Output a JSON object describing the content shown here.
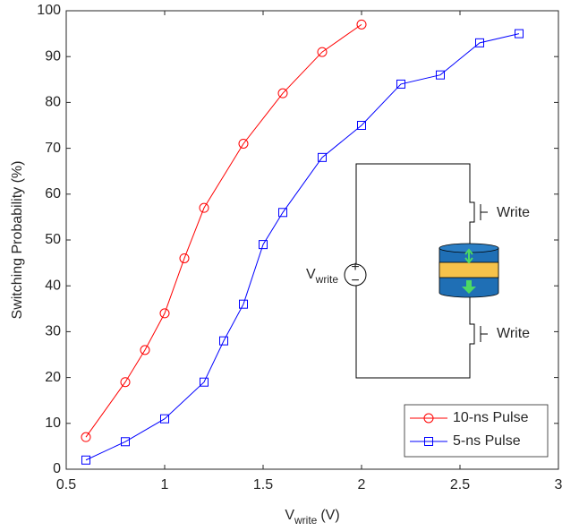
{
  "chart_data": {
    "type": "line",
    "xlabel": "V",
    "xlabel_sub": "write",
    "xlabel_unit": "(V)",
    "ylabel": "Switching Probability (%)",
    "xlim": [
      0.5,
      3
    ],
    "xticks": [
      0.5,
      1,
      1.5,
      2,
      2.5,
      3
    ],
    "ylim": [
      0,
      100
    ],
    "yticks": [
      0,
      10,
      20,
      30,
      40,
      50,
      60,
      70,
      80,
      90,
      100
    ],
    "grid": false,
    "legend": "lower right",
    "series": [
      {
        "name": "10-ns Pulse",
        "color": "#ff0000",
        "marker": "circle",
        "x": [
          0.6,
          0.8,
          0.9,
          1.0,
          1.1,
          1.2,
          1.4,
          1.6,
          1.8,
          2.0
        ],
        "values": [
          7,
          19,
          26,
          34,
          46,
          57,
          71,
          82,
          91,
          97
        ]
      },
      {
        "name": "5-ns Pulse",
        "color": "#0000ff",
        "marker": "square",
        "x": [
          0.6,
          0.8,
          1.0,
          1.2,
          1.3,
          1.4,
          1.5,
          1.6,
          1.8,
          2.0,
          2.2,
          2.4,
          2.6,
          2.8
        ],
        "values": [
          2,
          6,
          11,
          19,
          28,
          36,
          49,
          56,
          68,
          75,
          84,
          86,
          93,
          95
        ]
      }
    ],
    "inset": {
      "source_label": "V",
      "source_label_sub": "write",
      "plus": "+",
      "minus": "−",
      "gate_top": "Write",
      "gate_bottom": "Write"
    }
  }
}
